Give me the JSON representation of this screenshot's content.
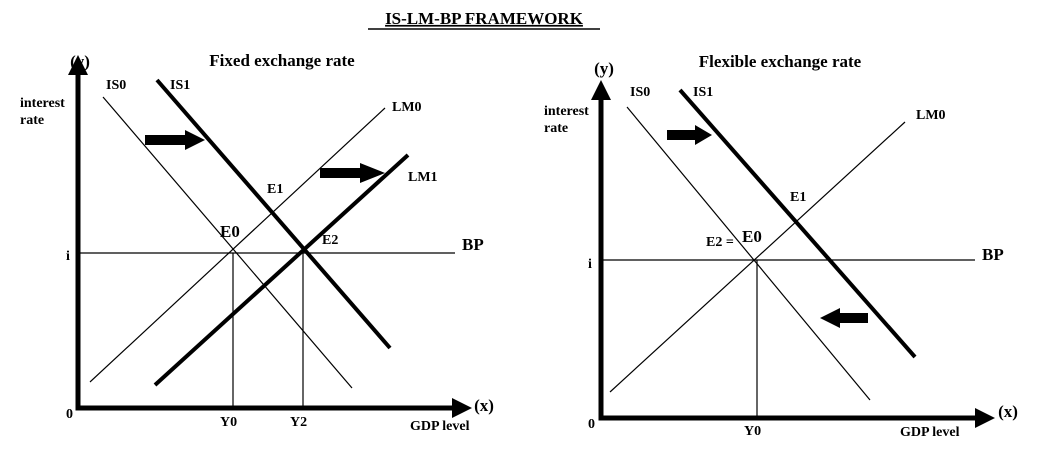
{
  "title": "IS-LM-BP FRAMEWORK",
  "panels": [
    {
      "title": "Fixed exchange rate",
      "y_axis": "(y)",
      "y_label": [
        "interest",
        "rate"
      ],
      "x_axis": "(x)",
      "x_label": "GDP level",
      "origin": "0",
      "rate_mark": "i",
      "curve_labels": [
        "IS0",
        "IS1",
        "LM0",
        "LM1",
        "BP"
      ],
      "points": [
        "E0",
        "E1",
        "E2"
      ],
      "x_ticks": [
        "Y0",
        "Y2"
      ]
    },
    {
      "title": "Flexible exchange rate",
      "y_axis": "(y)",
      "y_label": [
        "interest",
        "rate"
      ],
      "x_axis": "(x)",
      "x_label": "GDP level",
      "origin": "0",
      "rate_mark": "i",
      "curve_labels": [
        "IS0",
        "IS1",
        "LM0",
        "BP"
      ],
      "points": [
        "E1",
        "E2 =",
        "E0"
      ],
      "x_ticks": [
        "Y0"
      ]
    }
  ]
}
